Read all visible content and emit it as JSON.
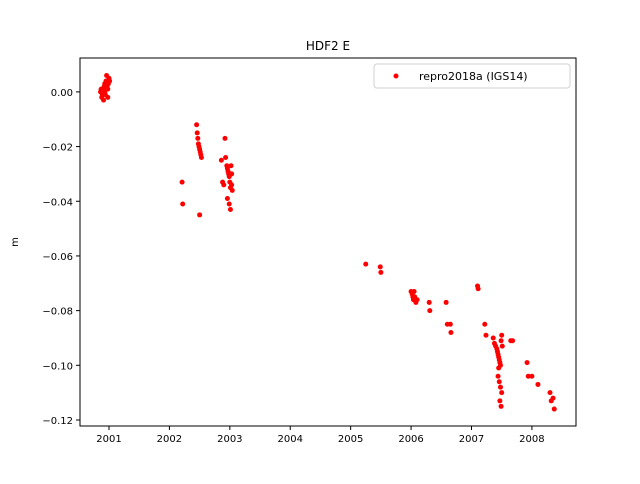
{
  "chart_data": {
    "type": "scatter",
    "title": "HDF2 E",
    "y_label": "m",
    "xlim": [
      2000.52,
      2008.73
    ],
    "xticks": [
      2001,
      2002,
      2003,
      2004,
      2005,
      2006,
      2007,
      2008
    ],
    "ylim": [
      -0.1222,
      0.0124
    ],
    "yticks": [
      {
        "value": 0,
        "label": "0.00"
      },
      {
        "value": -0.02,
        "label": "−0.02"
      },
      {
        "value": -0.04,
        "label": "−0.04"
      },
      {
        "value": -0.06,
        "label": "−0.06"
      },
      {
        "value": -0.08,
        "label": "−0.08"
      },
      {
        "value": -0.1,
        "label": "−0.10"
      },
      {
        "value": -0.12,
        "label": "−0.12"
      }
    ],
    "grid": false,
    "legend": "upper right",
    "series": [
      {
        "name": "repro2018a (IGS14)",
        "color": "#ff0000",
        "x": [
          2000.86,
          2000.88,
          2000.9,
          2000.91,
          2000.92,
          2000.93,
          2000.94,
          2000.95,
          2000.96,
          2000.97,
          2000.98,
          2000.99,
          2001.0,
          2001.01,
          2000.89,
          2000.93,
          2000.96,
          2000.98,
          2000.87,
          2000.95,
          2002.21,
          2002.22,
          2002.45,
          2002.46,
          2002.47,
          2002.48,
          2002.49,
          2002.5,
          2002.51,
          2002.52,
          2002.53,
          2002.5,
          2002.86,
          2002.88,
          2002.9,
          2002.92,
          2002.93,
          2002.95,
          2002.96,
          2002.97,
          2002.98,
          2002.99,
          2003.0,
          2003.01,
          2003.02,
          2003.03,
          2003.04,
          2002.96,
          2002.99,
          2003.01,
          2003.03,
          2005.25,
          2005.49,
          2005.5,
          2006.0,
          2006.02,
          2006.03,
          2006.04,
          2006.05,
          2006.06,
          2006.08,
          2006.1,
          2006.3,
          2006.31,
          2006.58,
          2006.6,
          2006.65,
          2006.66,
          2007.1,
          2007.11,
          2007.22,
          2007.24,
          2007.36,
          2007.38,
          2007.4,
          2007.42,
          2007.43,
          2007.44,
          2007.45,
          2007.46,
          2007.47,
          2007.48,
          2007.49,
          2007.5,
          2007.51,
          2007.44,
          2007.46,
          2007.48,
          2007.5,
          2007.45,
          2007.47,
          2007.49,
          2007.65,
          2007.68,
          2007.92,
          2007.94,
          2008.0,
          2008.1,
          2008.3,
          2008.32,
          2008.35,
          2008.37
        ],
        "values": [
          0.0,
          -0.002,
          0.001,
          -0.003,
          0.002,
          0.003,
          -0.001,
          0.004,
          0.006,
          0.002,
          0.001,
          0.003,
          0.005,
          0.004,
          -0.001,
          0.0,
          0.002,
          -0.002,
          0.001,
          0.003,
          -0.033,
          -0.041,
          -0.012,
          -0.015,
          -0.017,
          -0.019,
          -0.02,
          -0.021,
          -0.022,
          -0.023,
          -0.024,
          -0.045,
          -0.025,
          -0.033,
          -0.034,
          -0.017,
          -0.024,
          -0.027,
          -0.028,
          -0.029,
          -0.03,
          -0.031,
          -0.033,
          -0.035,
          -0.027,
          -0.034,
          -0.036,
          -0.039,
          -0.041,
          -0.043,
          -0.03,
          -0.063,
          -0.064,
          -0.066,
          -0.073,
          -0.074,
          -0.075,
          -0.076,
          -0.073,
          -0.075,
          -0.077,
          -0.076,
          -0.077,
          -0.08,
          -0.077,
          -0.085,
          -0.085,
          -0.088,
          -0.071,
          -0.072,
          -0.085,
          -0.089,
          -0.09,
          -0.092,
          -0.093,
          -0.094,
          -0.095,
          -0.096,
          -0.097,
          -0.098,
          -0.099,
          -0.1,
          -0.091,
          -0.089,
          -0.093,
          -0.104,
          -0.106,
          -0.108,
          -0.11,
          -0.101,
          -0.113,
          -0.115,
          -0.091,
          -0.091,
          -0.099,
          -0.104,
          -0.104,
          -0.107,
          -0.11,
          -0.113,
          -0.112,
          -0.116
        ]
      }
    ]
  }
}
